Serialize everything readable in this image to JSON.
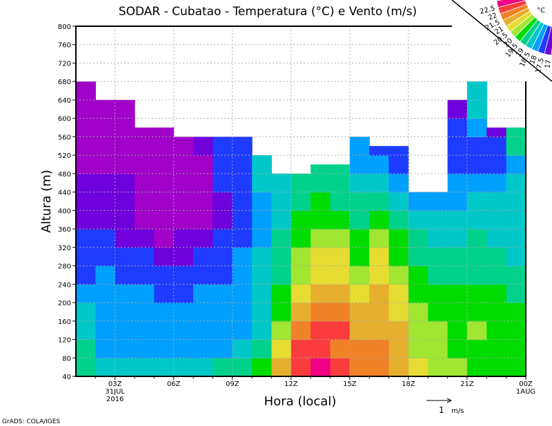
{
  "chart_data": {
    "type": "heatmap",
    "title": "SODAR - Cubatao - Temperatura (°C) e Vento (m/s)",
    "xlabel": "Hora (local)",
    "ylabel": "Altura (m)",
    "xlim_hours": [
      1,
      24
    ],
    "ylim": [
      40,
      800
    ],
    "grid": true,
    "yticks": [
      40,
      80,
      120,
      160,
      200,
      240,
      280,
      320,
      360,
      400,
      440,
      480,
      520,
      560,
      600,
      640,
      680,
      720,
      760,
      800
    ],
    "xticks": [
      {
        "hour": 3,
        "label": "03Z",
        "sub1": "31JUL",
        "sub2": "2016"
      },
      {
        "hour": 6,
        "label": "06Z"
      },
      {
        "hour": 9,
        "label": "09Z"
      },
      {
        "hour": 12,
        "label": "12Z"
      },
      {
        "hour": 15,
        "label": "15Z"
      },
      {
        "hour": 18,
        "label": "18Z"
      },
      {
        "hour": 21,
        "label": "21Z"
      },
      {
        "hour": 24,
        "label": "00Z",
        "sub1": "1AUG"
      }
    ],
    "colorbar": {
      "unit": "°C",
      "placement": "top-right",
      "levels": [
        22.5,
        22,
        21.5,
        21,
        20.5,
        20,
        19.5,
        19,
        18.5,
        18,
        17.5,
        17
      ],
      "level_labels": [
        "22.5",
        "22",
        "21.5",
        "21",
        "20.5",
        "20",
        "19.5",
        "19",
        "18.5",
        "18",
        "17.5",
        "17"
      ],
      "colors": [
        "#f00082",
        "#fa3c3c",
        "#f08228",
        "#e6af2d",
        "#e6dc32",
        "#a0e632",
        "#00dc00",
        "#00d28c",
        "#00c8c8",
        "#00a0ff",
        "#1e3cff",
        "#6e00dc",
        "#a000c8"
      ]
    },
    "vector_reference": {
      "value": "1",
      "unit": "m/s"
    },
    "height_bins": [
      40,
      80,
      120,
      160,
      200,
      240,
      280,
      320,
      360,
      400,
      440,
      480,
      520,
      560,
      600,
      640,
      680
    ],
    "bin_size_m": 40,
    "columns": [
      {
        "start_hour": 1,
        "top": 700,
        "temps": [
          19.2,
          19.2,
          18.7,
          18.7,
          18.2,
          17.7,
          17.7,
          17.7,
          17.2,
          17.2,
          17.2,
          16.8,
          16.8,
          16.8,
          16.8,
          16.8
        ]
      },
      {
        "start_hour": 2,
        "top": 640,
        "temps": [
          18.7,
          18.2,
          18.2,
          18.2,
          18.2,
          18.2,
          17.7,
          17.7,
          17.2,
          17.2,
          17.2,
          16.8,
          16.8,
          16.8,
          16.8
        ]
      },
      {
        "start_hour": 3,
        "top": 640,
        "temps": [
          18.7,
          18.2,
          18.2,
          18.2,
          18.2,
          17.7,
          17.7,
          17.2,
          17.2,
          17.2,
          17.2,
          16.8,
          16.8,
          16.8,
          16.8
        ]
      },
      {
        "start_hour": 4,
        "top": 580,
        "temps": [
          18.7,
          18.2,
          18.2,
          18.2,
          18.2,
          17.7,
          17.7,
          17.2,
          16.8,
          16.8,
          16.8,
          16.8,
          16.8,
          16.8
        ]
      },
      {
        "start_hour": 5,
        "top": 580,
        "temps": [
          18.7,
          18.2,
          18.2,
          18.2,
          17.7,
          17.7,
          17.2,
          16.8,
          16.8,
          16.8,
          16.8,
          16.8,
          16.8,
          16.8
        ]
      },
      {
        "start_hour": 6,
        "top": 560,
        "temps": [
          18.7,
          18.2,
          18.2,
          18.2,
          17.7,
          17.7,
          17.2,
          17.2,
          16.8,
          16.8,
          16.8,
          16.8,
          16.8
        ]
      },
      {
        "start_hour": 7,
        "top": 560,
        "temps": [
          18.7,
          18.2,
          18.2,
          18.2,
          18.2,
          17.7,
          17.7,
          17.2,
          16.8,
          16.8,
          16.8,
          16.8,
          17.2
        ]
      },
      {
        "start_hour": 8,
        "top": 560,
        "temps": [
          19.2,
          18.2,
          18.2,
          18.2,
          18.2,
          17.7,
          17.7,
          17.7,
          17.2,
          17.2,
          17.7,
          17.7,
          17.7
        ]
      },
      {
        "start_hour": 9,
        "top": 560,
        "temps": [
          19.2,
          18.7,
          18.2,
          18.2,
          18.2,
          18.2,
          18.2,
          17.7,
          17.7,
          17.7,
          17.7,
          17.7,
          17.7
        ]
      },
      {
        "start_hour": 10,
        "top": 520,
        "temps": [
          19.7,
          19.2,
          18.7,
          18.7,
          18.7,
          18.7,
          18.7,
          18.2,
          18.2,
          18.2,
          18.7,
          18.7
        ]
      },
      {
        "start_hour": 11,
        "top": 480,
        "temps": [
          21.2,
          20.7,
          20.2,
          19.7,
          19.7,
          19.2,
          19.2,
          19.2,
          18.7,
          18.7,
          18.7
        ]
      },
      {
        "start_hour": 12,
        "top": 480,
        "temps": [
          22.2,
          22.2,
          21.7,
          21.2,
          20.7,
          20.2,
          20.2,
          19.7,
          19.7,
          19.2,
          19.2
        ]
      },
      {
        "start_hour": 13,
        "top": 500,
        "temps": [
          22.7,
          22.2,
          22.2,
          21.7,
          21.2,
          20.7,
          20.7,
          20.2,
          19.7,
          19.7,
          19.2,
          19.2
        ]
      },
      {
        "start_hour": 14,
        "top": 500,
        "temps": [
          22.2,
          21.7,
          22.2,
          21.7,
          21.2,
          20.7,
          20.7,
          20.2,
          19.7,
          19.2,
          19.2,
          19.2
        ]
      },
      {
        "start_hour": 15,
        "top": 560,
        "temps": [
          21.7,
          21.7,
          21.2,
          21.2,
          20.7,
          20.2,
          19.7,
          19.7,
          19.2,
          19.2,
          18.7,
          18.2,
          18.2
        ]
      },
      {
        "start_hour": 16,
        "top": 540,
        "temps": [
          21.7,
          21.7,
          21.2,
          21.2,
          21.2,
          20.7,
          20.7,
          20.2,
          19.7,
          19.2,
          18.7,
          18.2,
          17.7
        ]
      },
      {
        "start_hour": 17,
        "top": 540,
        "temps": [
          21.2,
          21.2,
          21.2,
          20.7,
          20.7,
          20.2,
          19.7,
          19.7,
          19.2,
          18.7,
          18.2,
          17.7,
          17.7
        ]
      },
      {
        "start_hour": 18,
        "top": 440,
        "temps": [
          20.7,
          20.2,
          20.2,
          20.2,
          19.7,
          19.7,
          19.2,
          19.2,
          18.7,
          18.2
        ]
      },
      {
        "start_hour": 19,
        "top": 440,
        "temps": [
          20.2,
          20.2,
          20.2,
          19.7,
          19.7,
          19.2,
          19.2,
          18.7,
          18.7,
          18.2
        ]
      },
      {
        "start_hour": 20,
        "top": 640,
        "temps": [
          20.2,
          19.7,
          19.7,
          19.7,
          19.7,
          19.2,
          19.2,
          18.7,
          18.7,
          18.2,
          18.2,
          17.7,
          17.7,
          17.7,
          17.2
        ]
      },
      {
        "start_hour": 21,
        "top": 700,
        "temps": [
          19.7,
          19.7,
          20.2,
          19.7,
          19.7,
          19.2,
          19.2,
          19.2,
          18.7,
          18.7,
          18.2,
          17.7,
          17.7,
          18.2,
          18.7,
          18.7
        ]
      },
      {
        "start_hour": 22,
        "top": 580,
        "temps": [
          19.7,
          19.7,
          19.7,
          19.7,
          19.7,
          19.2,
          19.2,
          18.7,
          18.7,
          18.7,
          18.2,
          17.7,
          17.7,
          17.2
        ]
      },
      {
        "start_hour": 23,
        "top": 580,
        "temps": [
          19.7,
          19.7,
          19.7,
          19.7,
          19.2,
          19.2,
          18.7,
          18.7,
          18.7,
          18.7,
          18.7,
          18.2,
          19.2,
          19.2
        ]
      }
    ]
  },
  "footer": "GrADS: COLA/IGES"
}
